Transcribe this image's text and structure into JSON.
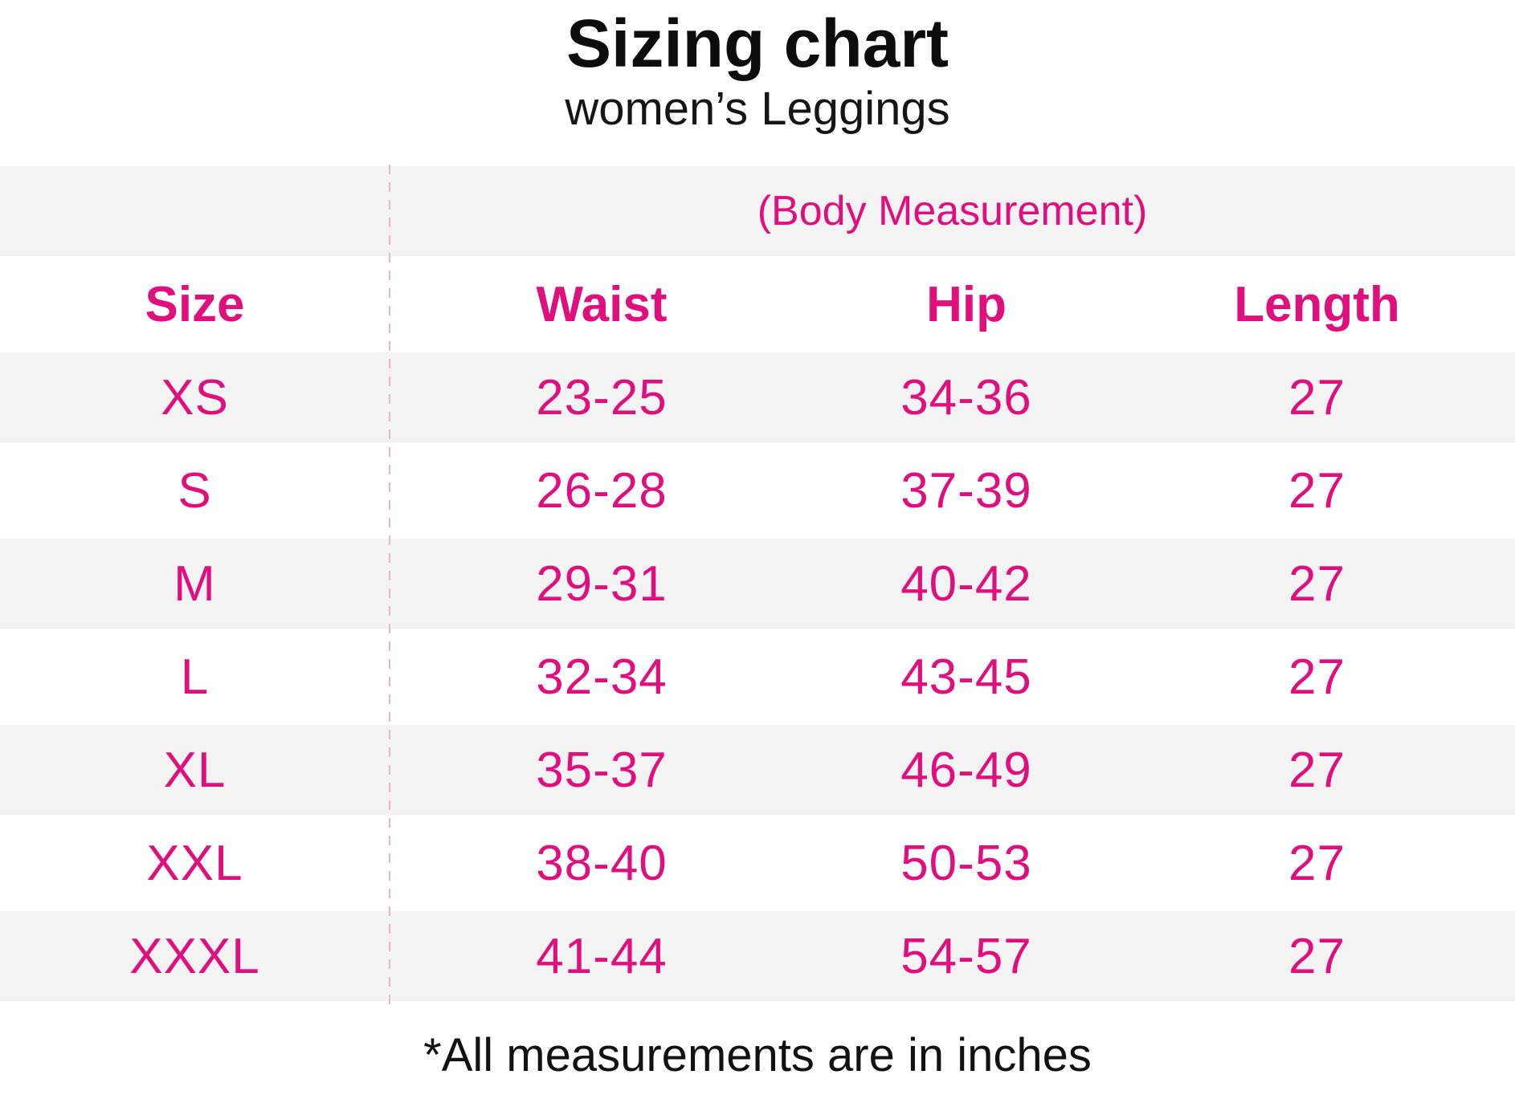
{
  "chart_data": {
    "type": "table",
    "title": "Sizing chart",
    "subtitle": "women’s Leggings",
    "group_header": "(Body Measurement)",
    "columns": [
      "Size",
      "Waist",
      "Hip",
      "Length"
    ],
    "rows": [
      {
        "size": "XS",
        "waist": "23-25",
        "hip": "34-36",
        "length": "27"
      },
      {
        "size": "S",
        "waist": "26-28",
        "hip": "37-39",
        "length": "27"
      },
      {
        "size": "M",
        "waist": "29-31",
        "hip": "40-42",
        "length": "27"
      },
      {
        "size": "L",
        "waist": "32-34",
        "hip": "43-45",
        "length": "27"
      },
      {
        "size": "XL",
        "waist": "35-37",
        "hip": "46-49",
        "length": "27"
      },
      {
        "size": "XXL",
        "waist": "38-40",
        "hip": "50-53",
        "length": "27"
      },
      {
        "size": "XXXL",
        "waist": "41-44",
        "hip": "54-57",
        "length": "27"
      }
    ],
    "footnote": "*All measurements are in inches",
    "units": "inches",
    "layout_hints": {
      "striped_rows": true,
      "dashed_divider_after_column": "Size"
    }
  },
  "colors": {
    "accent_pink": "#e00f7e",
    "row_stripe_gray": "#f3f3f4",
    "divider_dash_pink": "#e9b7c8",
    "text_black": "#111111"
  }
}
